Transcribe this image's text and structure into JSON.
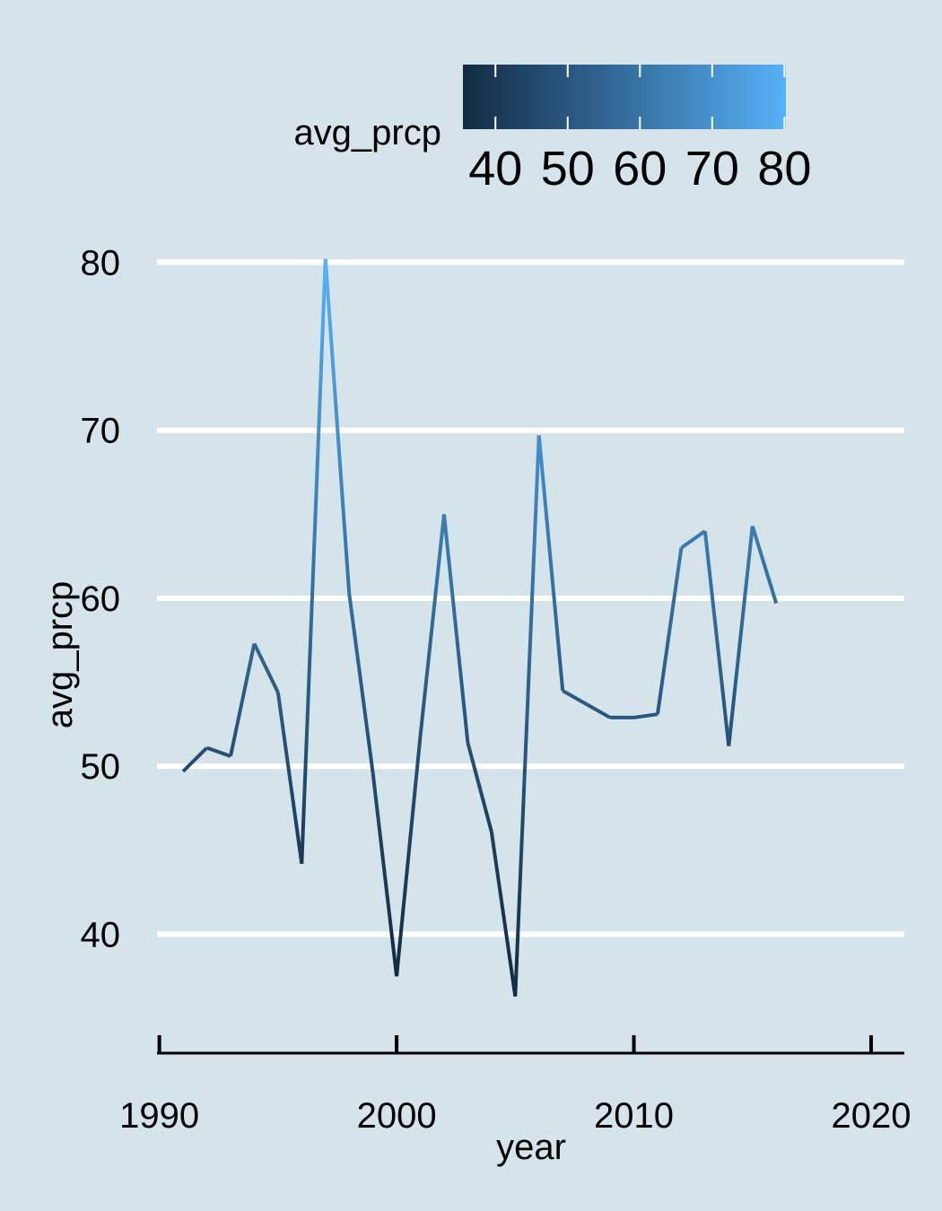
{
  "chart_data": {
    "type": "line",
    "title": "",
    "xlabel": "year",
    "ylabel": "avg_prcp",
    "xlim": [
      1989.9,
      2021.4
    ],
    "ylim": [
      34.1,
      82.8
    ],
    "x_ticks": [
      1990,
      2000,
      2010,
      2020
    ],
    "x_tick_labels": [
      "1990",
      "2000",
      "2010",
      "2020"
    ],
    "y_ticks": [
      40,
      50,
      60,
      70,
      80
    ],
    "y_tick_labels": [
      "40",
      "50",
      "60",
      "70",
      "80"
    ],
    "grid": "horizontal major lines",
    "legend": {
      "title": "avg_prcp",
      "position": "top",
      "type": "colorbar",
      "range": [
        40,
        80
      ],
      "ticks": [
        40,
        50,
        60,
        70,
        80
      ],
      "tick_labels": [
        "40",
        "50",
        "60",
        "70",
        "80"
      ],
      "low_color": "#132b43",
      "high_color": "#56b1f7"
    },
    "series": [
      {
        "color_by": "avg_prcp",
        "points": [
          {
            "x": 1991,
            "y": 49.7
          },
          {
            "x": 1992,
            "y": 51.1
          },
          {
            "x": 1993,
            "y": 50.6
          },
          {
            "x": 1994,
            "y": 57.3
          },
          {
            "x": 1995,
            "y": 54.4
          },
          {
            "x": 1996,
            "y": 44.2
          },
          {
            "x": 1997,
            "y": 80.2
          },
          {
            "x": 1998,
            "y": 60.3
          },
          {
            "x": 1999,
            "y": 49.6
          },
          {
            "x": 2000,
            "y": 37.5
          },
          {
            "x": 2001,
            "y": 51.8
          },
          {
            "x": 2002,
            "y": 65.0
          },
          {
            "x": 2003,
            "y": 51.4
          },
          {
            "x": 2004,
            "y": 46.1
          },
          {
            "x": 2005,
            "y": 36.3
          },
          {
            "x": 2006,
            "y": 69.7
          },
          {
            "x": 2007,
            "y": 54.5
          },
          {
            "x": 2008,
            "y": 53.7
          },
          {
            "x": 2009,
            "y": 52.9
          },
          {
            "x": 2010,
            "y": 52.9
          },
          {
            "x": 2011,
            "y": 53.1
          },
          {
            "x": 2012,
            "y": 63.0
          },
          {
            "x": 2013,
            "y": 64.0
          },
          {
            "x": 2014,
            "y": 51.2
          },
          {
            "x": 2015,
            "y": 64.3
          },
          {
            "x": 2016,
            "y": 59.7
          }
        ]
      }
    ]
  }
}
